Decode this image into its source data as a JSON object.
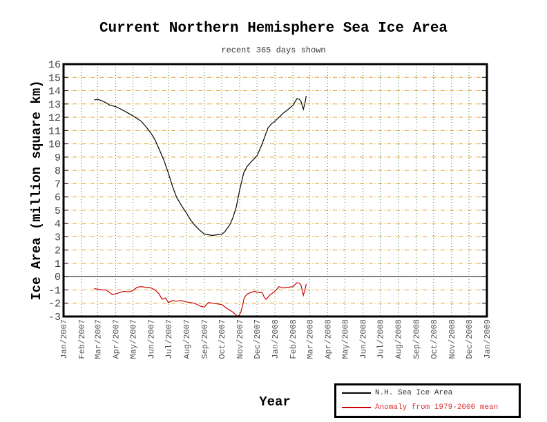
{
  "chart_data": {
    "type": "line",
    "title": "Current Northern Hemisphere Sea Ice Area",
    "subtitle": "recent 365 days shown",
    "xlabel": "Year",
    "ylabel": "Ice Area (million square km)",
    "ylim": [
      -3,
      16
    ],
    "xlim": [
      "Jan/2007",
      "Jan/2009"
    ],
    "grid": true,
    "legend_position": "bottom-right",
    "y_ticks": [
      "16",
      "15",
      "14",
      "13",
      "12",
      "11",
      "10",
      "9",
      "8",
      "7",
      "6",
      "5",
      "4",
      "3",
      "2",
      "1",
      "0",
      "-1",
      "-2",
      "-3"
    ],
    "x_ticks": [
      "Jan/2007",
      "Feb/2007",
      "Mar/2007",
      "Apr/2007",
      "May/2007",
      "Jun/2007",
      "Jul/2007",
      "Aug/2007",
      "Sep/2007",
      "Oct/2007",
      "Nov/2007",
      "Dec/2007",
      "Jan/2008",
      "Feb/2008",
      "Mar/2008",
      "Apr/2008",
      "May/2008",
      "Jun/2008",
      "Jul/2008",
      "Aug/2008",
      "Sep/2008",
      "Oct/2008",
      "Nov/2008",
      "Dec/2008",
      "Jan/2009"
    ],
    "x_unit": "days since Jan 1 2007",
    "series": [
      {
        "name": "N.H. Sea Ice Area",
        "color": "#000000",
        "x": [
          53,
          59,
          66,
          73,
          80,
          90,
          97,
          104,
          112,
          120,
          127,
          134,
          142,
          151,
          158,
          165,
          173,
          181,
          188,
          195,
          203,
          212,
          219,
          226,
          235,
          243,
          250,
          257,
          265,
          273,
          278,
          282,
          287,
          292,
          298,
          304,
          311,
          317,
          323,
          334,
          343,
          353,
          359,
          365,
          372,
          379,
          388,
          396,
          403,
          407,
          410,
          414,
          417,
          419
        ],
        "y": [
          13.3,
          13.35,
          13.25,
          13.1,
          12.9,
          12.8,
          12.65,
          12.5,
          12.3,
          12.1,
          11.9,
          11.7,
          11.3,
          10.8,
          10.3,
          9.6,
          8.8,
          7.8,
          6.8,
          6.0,
          5.4,
          4.8,
          4.3,
          3.9,
          3.5,
          3.2,
          3.15,
          3.1,
          3.15,
          3.2,
          3.35,
          3.6,
          3.9,
          4.4,
          5.2,
          6.5,
          7.8,
          8.3,
          8.6,
          9.1,
          10.0,
          11.2,
          11.5,
          11.7,
          12.0,
          12.3,
          12.6,
          12.9,
          13.4,
          13.35,
          13.2,
          12.6,
          13.1,
          13.6
        ]
      },
      {
        "name": "Anomaly from 1979-2000 mean",
        "color": "#cc0000",
        "x": [
          53,
          60,
          66,
          73,
          80,
          84,
          90,
          97,
          104,
          112,
          120,
          127,
          134,
          142,
          151,
          158,
          165,
          170,
          176,
          181,
          188,
          195,
          203,
          212,
          219,
          226,
          235,
          243,
          250,
          257,
          265,
          273,
          282,
          290,
          296,
          300,
          303,
          306,
          309,
          312,
          317,
          323,
          330,
          336,
          343,
          347,
          350,
          356,
          365,
          372,
          379,
          388,
          396,
          403,
          407,
          410,
          414,
          417,
          419
        ],
        "y": [
          -0.9,
          -0.95,
          -1.0,
          -1.0,
          -1.2,
          -1.35,
          -1.3,
          -1.2,
          -1.1,
          -1.15,
          -1.05,
          -0.8,
          -0.75,
          -0.8,
          -0.85,
          -1.0,
          -1.3,
          -1.7,
          -1.6,
          -1.95,
          -1.8,
          -1.85,
          -1.8,
          -1.9,
          -1.95,
          -2.0,
          -2.2,
          -2.3,
          -1.95,
          -2.0,
          -2.05,
          -2.1,
          -2.4,
          -2.6,
          -2.8,
          -3.0,
          -2.9,
          -2.7,
          -2.2,
          -1.6,
          -1.3,
          -1.2,
          -1.1,
          -1.2,
          -1.2,
          -1.6,
          -1.7,
          -1.4,
          -1.1,
          -0.75,
          -0.85,
          -0.8,
          -0.75,
          -0.45,
          -0.5,
          -0.65,
          -1.4,
          -0.95,
          -0.55
        ]
      }
    ]
  }
}
